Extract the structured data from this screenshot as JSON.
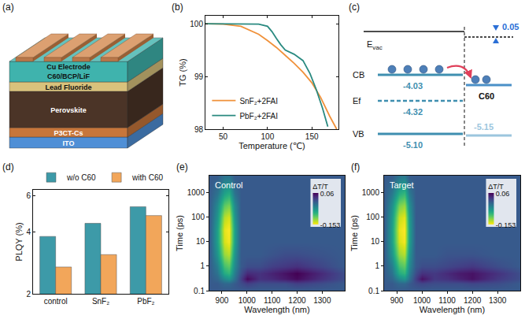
{
  "diagrams": {
    "a": {
      "panel": "(a)",
      "electrode": "Cu Electrode",
      "layers": [
        {
          "name": "C60/BCP/LiF",
          "color": "#3fb3ad"
        },
        {
          "name": "Lead Fluoride",
          "color": "#d9c27c"
        },
        {
          "name": "Perovskite",
          "color": "#4b3427"
        },
        {
          "name": "P3CT-Cs",
          "color": "#c7763b"
        },
        {
          "name": "ITO",
          "color": "#4f8fd6"
        }
      ]
    },
    "c": {
      "panel": "(c)",
      "vacuum": {
        "symbol": "E",
        "subscript": "vac"
      },
      "offset": "0.05",
      "cb": {
        "name": "CB",
        "value": "-4.03"
      },
      "ef": {
        "name": "Ef",
        "value": "-4.32"
      },
      "vb": {
        "name": "VB",
        "value": "-5.10"
      },
      "acceptor": {
        "name": "C60",
        "value": "-5.15"
      }
    }
  },
  "chart_data": [
    {
      "panel": "(b)",
      "type": "line",
      "x_label": "Temperature (℃)",
      "y_label": "TG (%)",
      "xlim": [
        30,
        180
      ],
      "xticks": [
        50,
        100,
        150
      ],
      "ylim": [
        98,
        100.15
      ],
      "yticks": [
        98,
        99,
        100
      ],
      "legend": "lower left",
      "series": [
        {
          "name": "SnF₂+2FAI",
          "color": "#f0913a",
          "x": [
            30,
            50,
            70,
            80,
            90,
            100,
            110,
            120,
            130,
            140,
            150,
            160,
            170,
            178
          ],
          "values": [
            100,
            99.99,
            99.95,
            99.88,
            99.8,
            99.68,
            99.55,
            99.4,
            99.25,
            99.08,
            98.88,
            98.6,
            98.25,
            98.0
          ]
        },
        {
          "name": "PbF₂+2FAI",
          "color": "#2a8a80",
          "x": [
            30,
            60,
            90,
            100,
            105,
            110,
            115,
            120,
            130,
            140,
            148,
            155,
            162,
            168
          ],
          "values": [
            100,
            100,
            99.99,
            99.95,
            99.85,
            99.72,
            99.6,
            99.5,
            99.42,
            99.3,
            99.05,
            98.75,
            98.4,
            98.05
          ]
        }
      ]
    },
    {
      "panel": "(d)",
      "type": "bar",
      "y_label": "PLQY (%)",
      "categories": [
        "control",
        "SnF₂",
        "PbF₂"
      ],
      "log": "y",
      "ylim": [
        2,
        6.4
      ],
      "yticks": [
        2,
        4,
        6
      ],
      "legend": "top",
      "series": [
        {
          "name": "w/o C60",
          "color": "#3d9aa8",
          "values": [
            3.8,
            4.4,
            5.3
          ]
        },
        {
          "name": "with C60",
          "color": "#f2a65a",
          "values": [
            2.7,
            3.1,
            4.8
          ]
        }
      ]
    },
    {
      "panel": "(e)",
      "type": "heatmap",
      "title": "Control",
      "x_label": "Wavelength (nm)",
      "y_label": "Time (ps)",
      "log": "y",
      "xlim": [
        850,
        1390
      ],
      "xticks": [
        900,
        1000,
        1100,
        1200,
        1300
      ],
      "ylim": [
        0.1,
        5000
      ],
      "yticks": [
        0.1,
        1,
        10,
        100,
        1000
      ],
      "x": [
        850,
        880,
        910,
        930,
        950,
        975,
        1000,
        1050,
        1100,
        1150,
        1200,
        1300,
        1390
      ],
      "y": [
        0.1,
        0.2,
        0.3,
        0.5,
        1,
        3,
        10,
        30,
        100,
        300,
        1000,
        5000
      ],
      "z": [
        [
          0,
          0,
          0,
          0,
          0,
          0,
          0,
          0,
          0,
          0,
          0,
          0,
          0
        ],
        [
          0,
          0,
          -0.01,
          -0.01,
          0,
          0.01,
          0.02,
          0.01,
          0.01,
          0.01,
          0.02,
          0.01,
          0
        ],
        [
          0,
          -0.01,
          -0.04,
          -0.05,
          -0.02,
          0.02,
          0.055,
          0.03,
          0.035,
          0.045,
          0.055,
          0.03,
          0.01
        ],
        [
          0,
          -0.02,
          -0.07,
          -0.08,
          -0.03,
          0.01,
          0.035,
          0.03,
          0.04,
          0.05,
          0.06,
          0.035,
          0.01
        ],
        [
          0,
          -0.03,
          -0.09,
          -0.1,
          -0.04,
          0,
          0.01,
          0.01,
          0.02,
          0.025,
          0.03,
          0.015,
          0
        ],
        [
          0,
          -0.05,
          -0.12,
          -0.13,
          -0.05,
          0,
          0,
          0,
          0.005,
          0.01,
          0.01,
          0.005,
          0
        ],
        [
          0,
          -0.06,
          -0.14,
          -0.15,
          -0.06,
          0,
          0,
          0,
          0,
          0,
          0,
          0,
          0
        ],
        [
          0,
          -0.06,
          -0.145,
          -0.153,
          -0.06,
          0,
          0,
          0,
          0,
          0,
          0,
          0,
          0
        ],
        [
          0,
          -0.05,
          -0.13,
          -0.14,
          -0.05,
          0,
          0,
          0,
          0,
          0,
          0,
          0,
          0
        ],
        [
          0,
          -0.04,
          -0.1,
          -0.11,
          -0.04,
          0,
          0,
          0,
          0,
          0,
          0,
          0,
          0
        ],
        [
          0,
          -0.02,
          -0.06,
          -0.07,
          -0.02,
          0,
          0,
          0,
          0,
          0,
          0,
          0,
          0
        ],
        [
          0,
          0,
          -0.02,
          -0.02,
          0,
          0,
          0,
          0,
          0,
          0,
          0,
          0,
          0
        ]
      ],
      "colorbar": {
        "title": "ΔT/T",
        "range": [
          -0.153,
          0.06
        ],
        "ticks": [
          -0.153,
          0.06
        ]
      }
    },
    {
      "panel": "(f)",
      "type": "heatmap",
      "title": "Target",
      "x_label": "Wavelength (nm)",
      "y_label": "Time (ps)",
      "log": "y",
      "xlim": [
        850,
        1390
      ],
      "xticks": [
        900,
        1000,
        1100,
        1200,
        1300
      ],
      "ylim": [
        0.1,
        5000
      ],
      "yticks": [
        0.1,
        1,
        10,
        100,
        1000
      ],
      "x": [
        850,
        880,
        910,
        930,
        950,
        975,
        1000,
        1050,
        1100,
        1150,
        1200,
        1300,
        1390
      ],
      "y": [
        0.1,
        0.2,
        0.3,
        0.5,
        1,
        3,
        10,
        30,
        100,
        300,
        1000,
        5000
      ],
      "z": [
        [
          0,
          0,
          0,
          0,
          0,
          0,
          0,
          0,
          0,
          0,
          0,
          0,
          0
        ],
        [
          0,
          0,
          -0.01,
          -0.01,
          0,
          0.01,
          0.015,
          0.01,
          0.01,
          0.01,
          0.015,
          0.01,
          0
        ],
        [
          0,
          -0.01,
          -0.04,
          -0.05,
          -0.02,
          0.02,
          0.05,
          0.025,
          0.03,
          0.04,
          0.05,
          0.025,
          0.01
        ],
        [
          0,
          -0.02,
          -0.07,
          -0.08,
          -0.03,
          0.01,
          0.03,
          0.025,
          0.035,
          0.045,
          0.05,
          0.03,
          0.01
        ],
        [
          0,
          -0.03,
          -0.09,
          -0.1,
          -0.04,
          0,
          0.01,
          0.01,
          0.015,
          0.02,
          0.025,
          0.01,
          0
        ],
        [
          0,
          -0.05,
          -0.12,
          -0.13,
          -0.05,
          0,
          0,
          0,
          0.005,
          0.005,
          0.005,
          0,
          0
        ],
        [
          0,
          -0.06,
          -0.14,
          -0.15,
          -0.06,
          0,
          0,
          0,
          0,
          0,
          0,
          0,
          0
        ],
        [
          0,
          -0.06,
          -0.145,
          -0.153,
          -0.06,
          0,
          0,
          0,
          0,
          0,
          0,
          0,
          0
        ],
        [
          0,
          -0.055,
          -0.135,
          -0.145,
          -0.055,
          0,
          0,
          0,
          0,
          0,
          0,
          0,
          0
        ],
        [
          0,
          -0.045,
          -0.11,
          -0.12,
          -0.045,
          0,
          0,
          0,
          0,
          0,
          0,
          0,
          0
        ],
        [
          0,
          -0.025,
          -0.07,
          -0.08,
          -0.025,
          0,
          0,
          0,
          0,
          0,
          0,
          0,
          0
        ],
        [
          0,
          0,
          -0.02,
          -0.025,
          0,
          0,
          0,
          0,
          0,
          0,
          0,
          0,
          0
        ]
      ],
      "colorbar": {
        "title": "ΔT/T",
        "range": [
          -0.153,
          0.06
        ],
        "ticks": [
          -0.153,
          0.06
        ]
      }
    }
  ]
}
